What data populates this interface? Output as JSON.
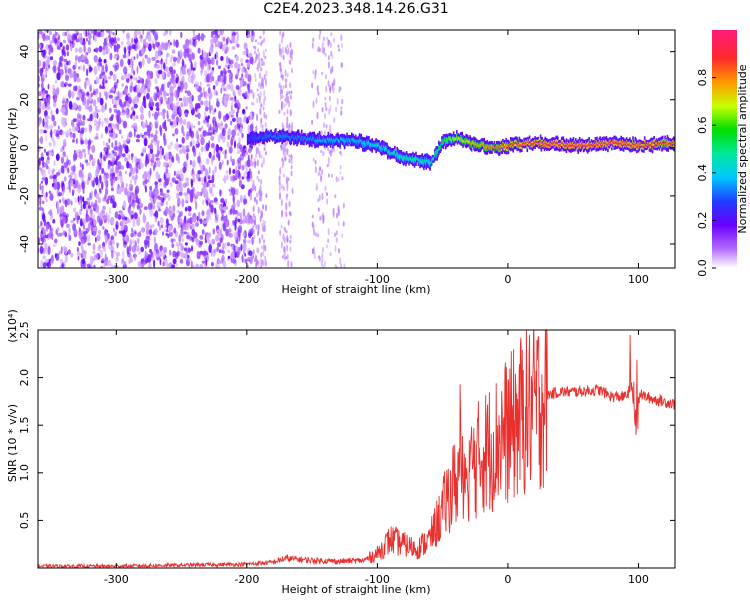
{
  "title": "C2E4.2023.348.14.26.G31",
  "chart_data": [
    {
      "type": "heatmap",
      "xlabel": "Height of straight line (km)",
      "ylabel": "Frequency (Hz)",
      "xlim": [
        -360,
        128
      ],
      "ylim": [
        -50,
        49
      ],
      "xticks": [
        -300,
        -200,
        -100,
        0,
        100
      ],
      "xtick_labels": [
        "-300",
        "-200",
        "-100",
        "0",
        "100"
      ],
      "yticks": [
        -40,
        -20,
        0,
        20,
        40
      ],
      "ytick_labels": [
        "-40",
        "-20",
        "0",
        "20",
        "40"
      ],
      "colorbar": {
        "label": "Normalized spectral amplitude",
        "range": [
          0,
          1
        ],
        "ticks": [
          0.0,
          0.2,
          0.4,
          0.6,
          0.8
        ],
        "tick_labels": [
          "0.0",
          "0.2",
          "0.4",
          "0.6",
          "0.8"
        ],
        "colormap": [
          "#ffffff",
          "#b36bff",
          "#6a00ff",
          "#1f3dff",
          "#00c8ff",
          "#00e89a",
          "#00dd00",
          "#c8ff00",
          "#ff9900",
          "#ff2a2a",
          "#ff1a7a"
        ]
      },
      "signal_track": {
        "x": [
          -200,
          -180,
          -160,
          -140,
          -120,
          -100,
          -90,
          -80,
          -70,
          -60,
          -55,
          -50,
          -40,
          -30,
          -20,
          -10,
          0,
          20,
          50,
          80,
          100,
          128
        ],
        "freq": [
          4,
          5,
          4,
          3,
          3,
          1,
          -2,
          -4,
          -5,
          -6,
          -2,
          3,
          4,
          2,
          1,
          0,
          1,
          2,
          1,
          2,
          1,
          2
        ],
        "peak_amplitude": [
          0.3,
          0.35,
          0.35,
          0.4,
          0.4,
          0.45,
          0.45,
          0.5,
          0.5,
          0.45,
          0.55,
          0.6,
          0.7,
          0.75,
          0.8,
          0.85,
          0.9,
          0.95,
          0.98,
          0.97,
          0.95,
          0.9
        ]
      },
      "noise_region_x": [
        -360,
        -200
      ]
    },
    {
      "type": "line",
      "xlabel": "Height of straight line (km)",
      "ylabel": "SNR (10 * v/v)",
      "y_multiplier_label": "(x10⁴)",
      "xlim": [
        -360,
        128
      ],
      "ylim": [
        0,
        2.5
      ],
      "xticks": [
        -300,
        -200,
        -100,
        0,
        100
      ],
      "xtick_labels": [
        "-300",
        "-200",
        "-100",
        "0",
        "100"
      ],
      "yticks": [
        0.5,
        1.0,
        1.5,
        2.0,
        2.5
      ],
      "ytick_labels": [
        "0.5",
        "1.0",
        "1.5",
        "2.0",
        "2.5"
      ],
      "series": [
        {
          "color": "#e8302e",
          "x": [
            -360,
            -300,
            -250,
            -200,
            -180,
            -170,
            -150,
            -130,
            -110,
            -100,
            -90,
            -80,
            -70,
            -60,
            -50,
            -45,
            -40,
            -35,
            -30,
            -25,
            -20,
            -15,
            -10,
            -5,
            0,
            5,
            10,
            20,
            30,
            40,
            50,
            60,
            70,
            80,
            90,
            95,
            98,
            100,
            105,
            110,
            128
          ],
          "y": [
            0.02,
            0.02,
            0.03,
            0.04,
            0.06,
            0.1,
            0.08,
            0.07,
            0.08,
            0.15,
            0.3,
            0.25,
            0.2,
            0.3,
            0.6,
            0.8,
            0.9,
            1.1,
            1.05,
            1.1,
            1.2,
            1.25,
            1.3,
            1.4,
            1.45,
            1.5,
            1.6,
            1.7,
            1.82,
            1.85,
            1.85,
            1.86,
            1.87,
            1.8,
            1.8,
            1.9,
            1.4,
            1.85,
            1.8,
            1.78,
            1.72
          ]
        }
      ]
    }
  ]
}
